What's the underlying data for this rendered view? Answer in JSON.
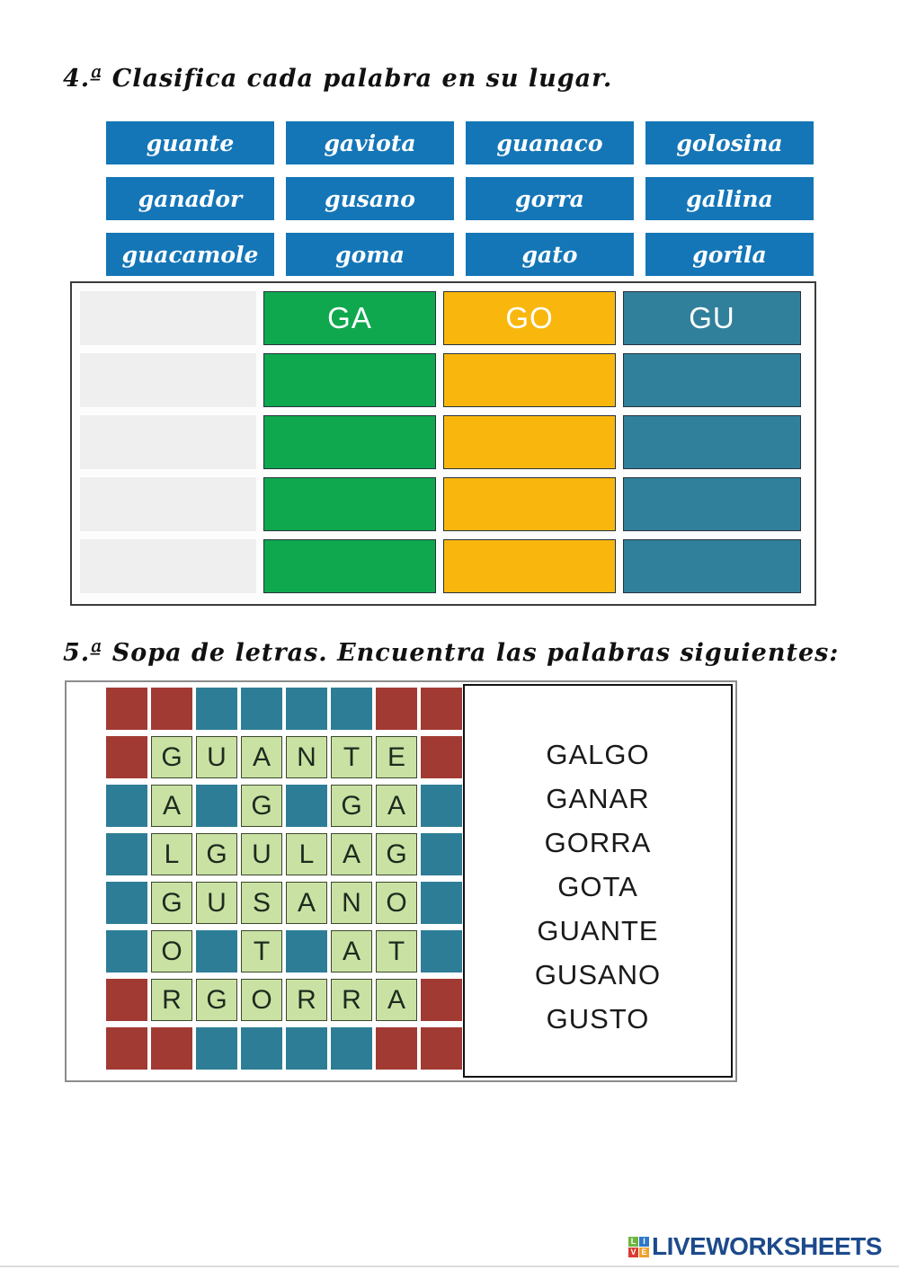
{
  "exercise4": {
    "title": "4.ª Clasifica cada palabra en su lugar.",
    "word_bank": {
      "tile_color": "#1476b7",
      "rows": [
        [
          "guante",
          "gaviota",
          "guanaco",
          "golosina"
        ],
        [
          "ganador",
          "gusano",
          "gorra",
          "gallina"
        ],
        [
          "guacamole",
          "goma",
          "gato",
          "gorila"
        ]
      ]
    },
    "table": {
      "columns": [
        {
          "label": "",
          "color": "#f0efef"
        },
        {
          "label": "GA",
          "color": "#0fa84e"
        },
        {
          "label": "GO",
          "color": "#f9b70e"
        },
        {
          "label": "GU",
          "color": "#31809b"
        }
      ],
      "empty_rows": 4
    }
  },
  "exercise5": {
    "title": "5.ª Sopa de letras. Encuentra las palabras siguientes:",
    "grid": {
      "legend": {
        "#": "red-filler-square",
        "~": "teal-filler-square"
      },
      "colors": {
        "red": "#a23a34",
        "teal": "#2e7d96",
        "letter_bg": "#c9e2a3",
        "letter_border": "#3c462c"
      },
      "rows": [
        [
          "#",
          "#",
          "~",
          "~",
          "~",
          "~",
          "#",
          "#"
        ],
        [
          "#",
          "G",
          "U",
          "A",
          "N",
          "T",
          "E",
          "#"
        ],
        [
          "~",
          "A",
          "~",
          "G",
          "~",
          "G",
          "A",
          "~"
        ],
        [
          "~",
          "L",
          "G",
          "U",
          "L",
          "A",
          "G",
          "~"
        ],
        [
          "~",
          "G",
          "U",
          "S",
          "A",
          "N",
          "O",
          "~"
        ],
        [
          "~",
          "O",
          "~",
          "T",
          "~",
          "A",
          "T",
          "~"
        ],
        [
          "#",
          "R",
          "G",
          "O",
          "R",
          "R",
          "A",
          "#"
        ],
        [
          "#",
          "#",
          "~",
          "~",
          "~",
          "~",
          "#",
          "#"
        ]
      ]
    },
    "words": [
      "GALGO",
      "GANAR",
      "GORRA",
      "GOTA",
      "GUANTE",
      "GUSANO",
      "GUSTO"
    ]
  },
  "footer": {
    "logo_text": "LIVEWORKSHEETS",
    "logo_text_color": "#1c4a8b",
    "logo_tiles": [
      {
        "letter": "L",
        "color": "#6fb53f"
      },
      {
        "letter": "I",
        "color": "#2e79c9"
      },
      {
        "letter": "V",
        "color": "#d93a32"
      },
      {
        "letter": "E",
        "color": "#f0a02c"
      }
    ]
  }
}
